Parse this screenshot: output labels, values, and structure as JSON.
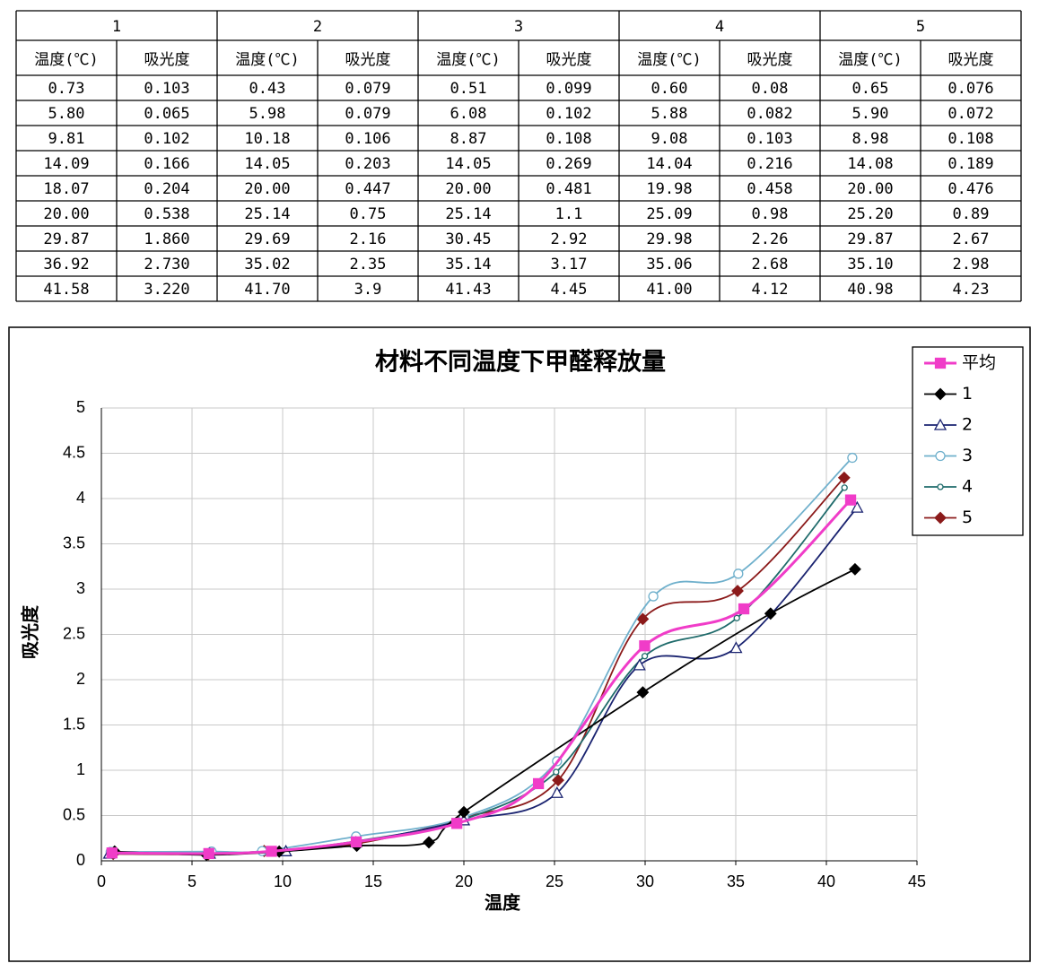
{
  "table": {
    "group_headers": [
      "1",
      "2",
      "3",
      "4",
      "5"
    ],
    "column_headers": [
      "温度(℃)",
      "吸光度",
      "温度(℃)",
      "吸光度",
      "温度(℃)",
      "吸光度",
      "温度(℃)",
      "吸光度",
      "温度(℃)",
      "吸光度"
    ],
    "rows": [
      [
        "0.73",
        "0.103",
        "0.43",
        "0.079",
        "0.51",
        "0.099",
        "0.60",
        "0.08",
        "0.65",
        "0.076"
      ],
      [
        "5.80",
        "0.065",
        "5.98",
        "0.079",
        "6.08",
        "0.102",
        "5.88",
        "0.082",
        "5.90",
        "0.072"
      ],
      [
        "9.81",
        "0.102",
        "10.18",
        "0.106",
        "8.87",
        "0.108",
        "9.08",
        "0.103",
        "8.98",
        "0.108"
      ],
      [
        "14.09",
        "0.166",
        "14.05",
        "0.203",
        "14.05",
        "0.269",
        "14.04",
        "0.216",
        "14.08",
        "0.189"
      ],
      [
        "18.07",
        "0.204",
        "20.00",
        "0.447",
        "20.00",
        "0.481",
        "19.98",
        "0.458",
        "20.00",
        "0.476"
      ],
      [
        "20.00",
        "0.538",
        "25.14",
        "0.75",
        "25.14",
        "1.1",
        "25.09",
        "0.98",
        "25.20",
        "0.89"
      ],
      [
        "29.87",
        "1.860",
        "29.69",
        "2.16",
        "30.45",
        "2.92",
        "29.98",
        "2.26",
        "29.87",
        "2.67"
      ],
      [
        "36.92",
        "2.730",
        "35.02",
        "2.35",
        "35.14",
        "3.17",
        "35.06",
        "2.68",
        "35.10",
        "2.98"
      ],
      [
        "41.58",
        "3.220",
        "41.70",
        "3.9",
        "41.43",
        "4.45",
        "41.00",
        "4.12",
        "40.98",
        "4.23"
      ]
    ]
  },
  "chart_data": {
    "type": "line",
    "title": "材料不同温度下甲醛释放量",
    "x_label": "温度",
    "y_label": "吸光度",
    "xlim": [
      0,
      45
    ],
    "xticks": [
      0,
      5,
      10,
      15,
      20,
      25,
      30,
      35,
      40,
      45
    ],
    "ylim": [
      0,
      5
    ],
    "yticks": [
      0,
      0.5,
      1,
      1.5,
      2,
      2.5,
      3,
      3.5,
      4,
      4.5,
      5
    ],
    "grid": true,
    "smooth": true,
    "legend": "top-right",
    "series": [
      {
        "name": "平均",
        "color": "#f03cc8",
        "marker": "square",
        "x": [
          0.584,
          5.928,
          9.384,
          14.062,
          19.61,
          24.114,
          29.972,
          35.448,
          41.338
        ],
        "values": [
          0.087,
          0.08,
          0.105,
          0.209,
          0.413,
          0.852,
          2.374,
          2.782,
          3.984
        ]
      },
      {
        "name": "1",
        "color": "#000000",
        "marker": "diamond",
        "x": [
          0.73,
          5.8,
          9.81,
          14.09,
          18.07,
          20.0,
          29.87,
          36.92,
          41.58
        ],
        "values": [
          0.103,
          0.065,
          0.102,
          0.166,
          0.204,
          0.538,
          1.86,
          2.73,
          3.22
        ]
      },
      {
        "name": "2",
        "color": "#1a2370",
        "marker": "triangle",
        "x": [
          0.43,
          5.98,
          10.18,
          14.05,
          20.0,
          25.14,
          29.69,
          35.02,
          41.7
        ],
        "values": [
          0.079,
          0.079,
          0.106,
          0.203,
          0.447,
          0.75,
          2.16,
          2.35,
          3.9
        ]
      },
      {
        "name": "3",
        "color": "#6fb0cc",
        "marker": "circle",
        "x": [
          0.51,
          6.08,
          8.87,
          14.05,
          20.0,
          25.14,
          30.45,
          35.14,
          41.43
        ],
        "values": [
          0.099,
          0.102,
          0.108,
          0.269,
          0.481,
          1.1,
          2.92,
          3.17,
          4.45
        ]
      },
      {
        "name": "4",
        "color": "#1f6b6b",
        "marker": "dot",
        "x": [
          0.6,
          5.88,
          9.08,
          14.04,
          19.98,
          25.09,
          29.98,
          35.06,
          41.0
        ],
        "values": [
          0.08,
          0.082,
          0.103,
          0.216,
          0.458,
          0.98,
          2.26,
          2.68,
          4.12
        ]
      },
      {
        "name": "5",
        "color": "#8b1a1a",
        "marker": "diamond",
        "x": [
          0.65,
          5.9,
          8.98,
          14.08,
          20.0,
          25.2,
          29.87,
          35.1,
          40.98
        ],
        "values": [
          0.076,
          0.072,
          0.108,
          0.189,
          0.476,
          0.89,
          2.67,
          2.98,
          4.23
        ]
      }
    ]
  }
}
